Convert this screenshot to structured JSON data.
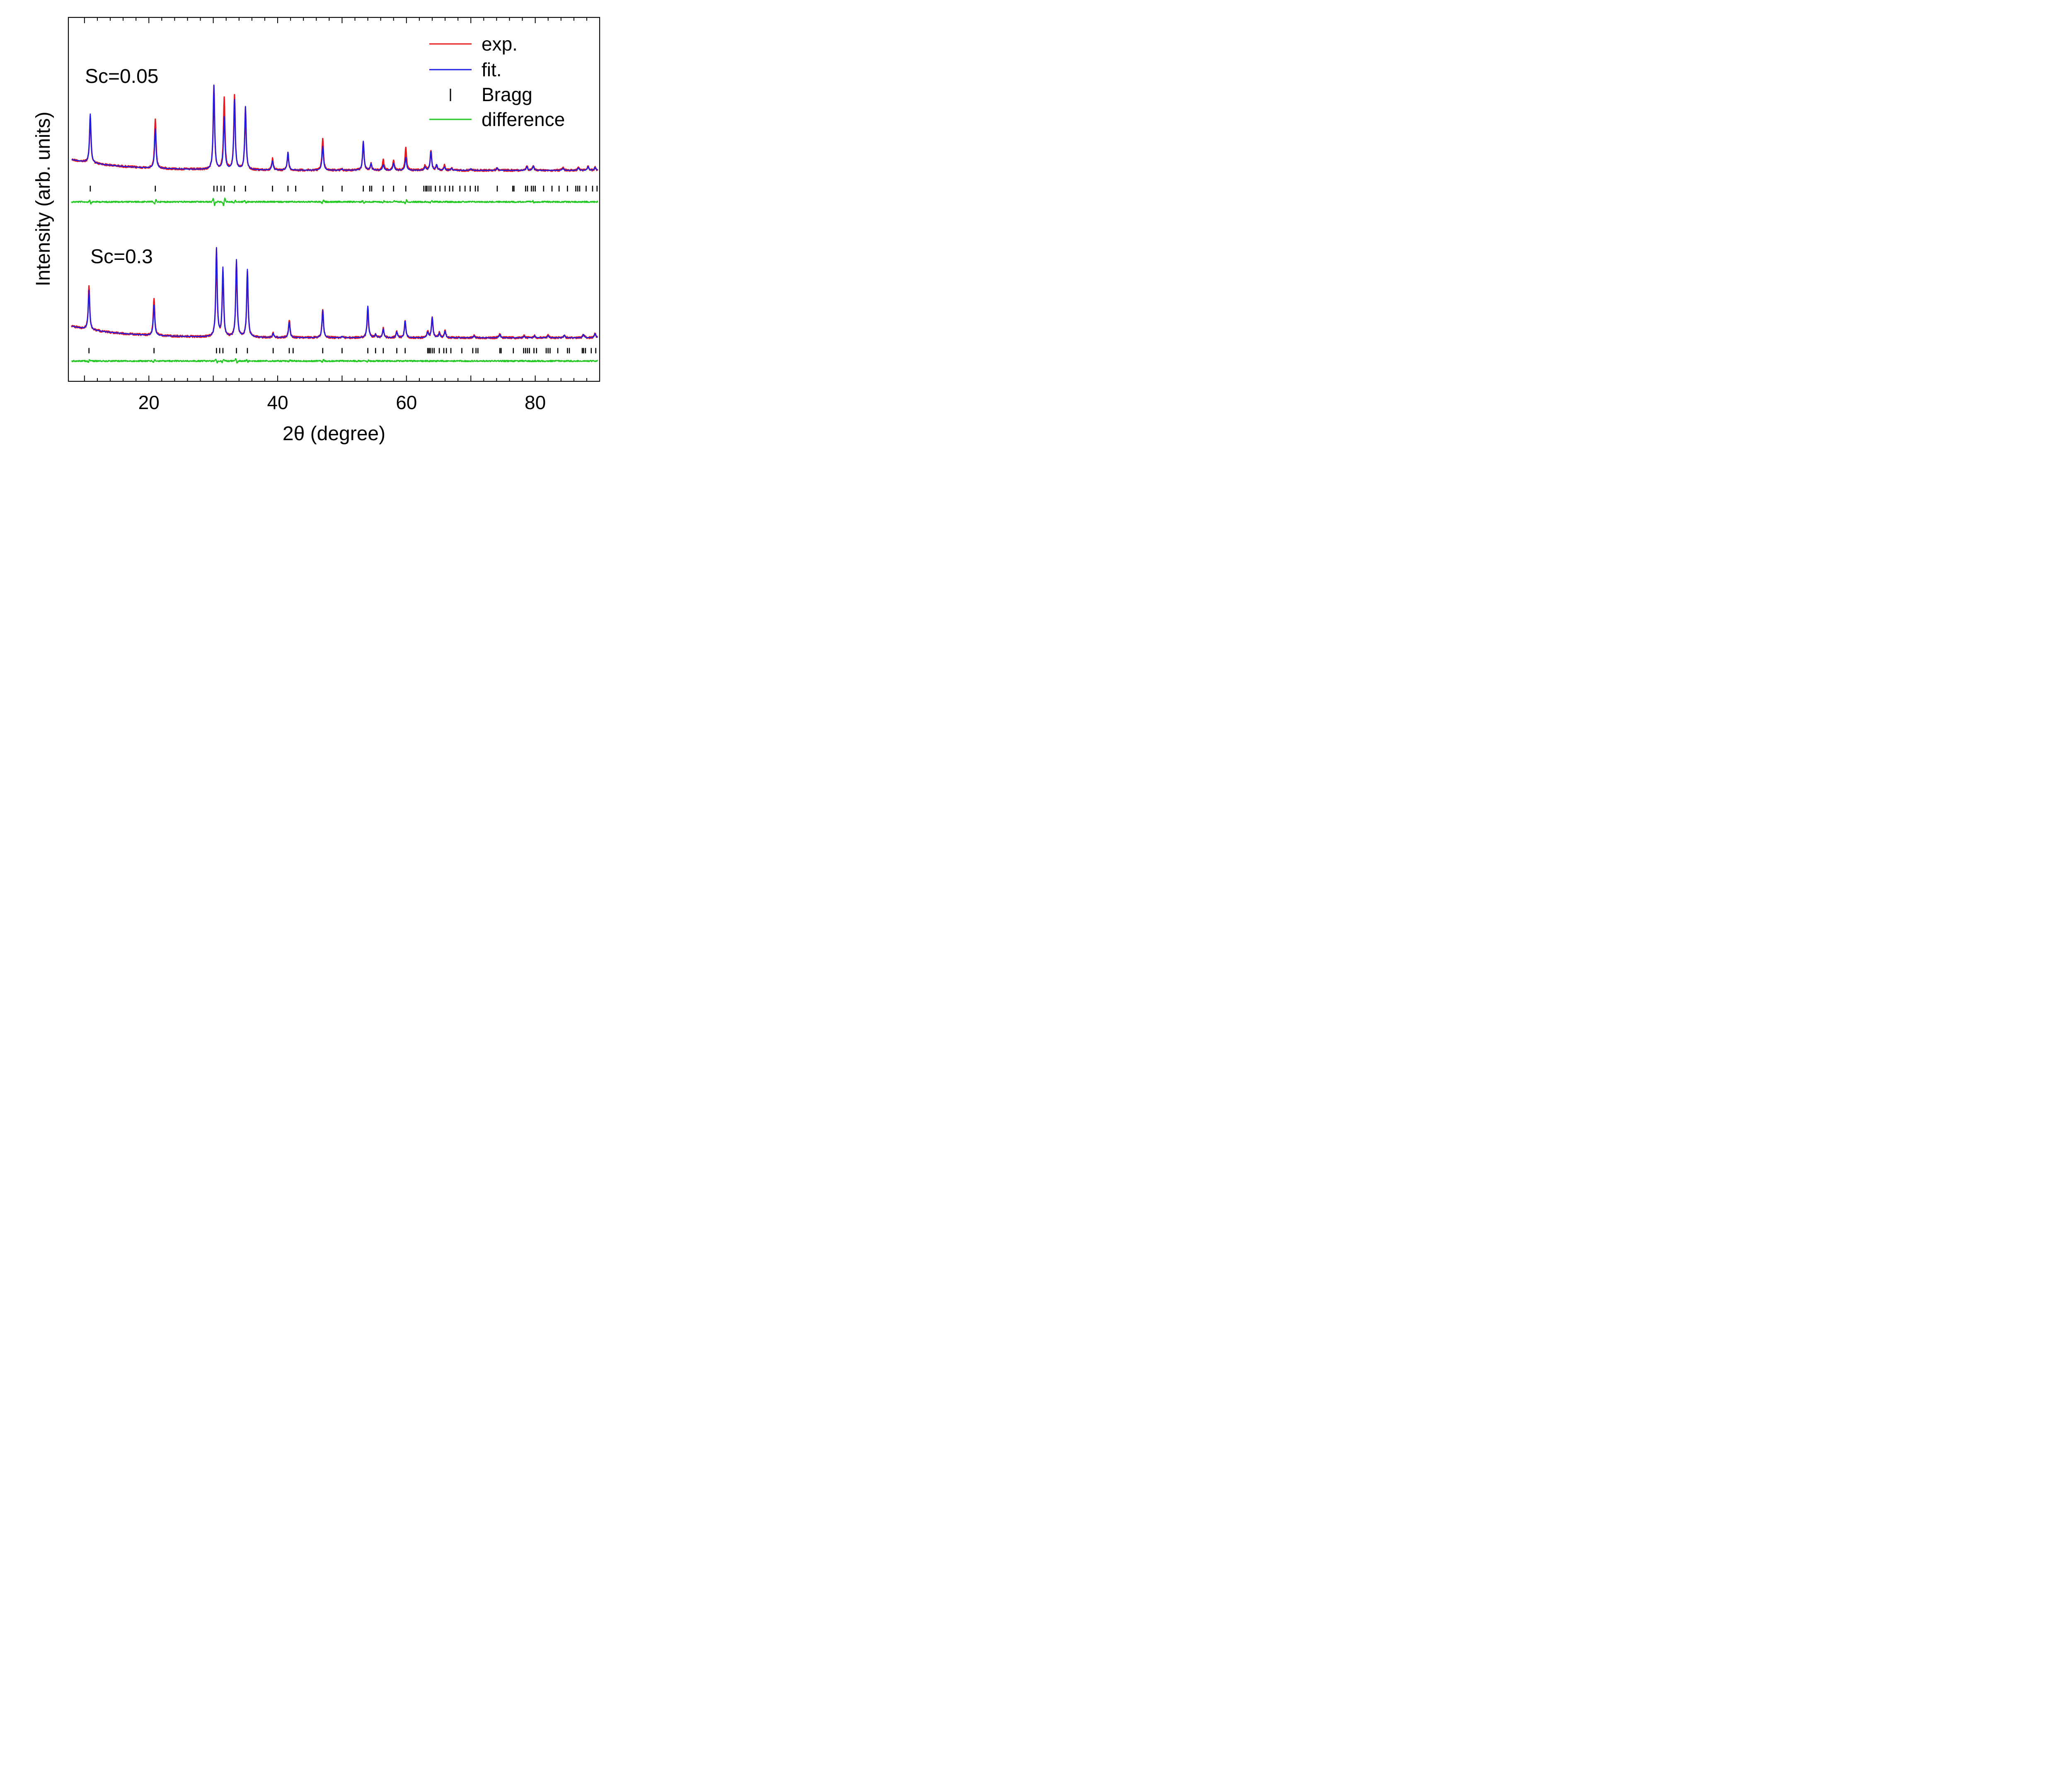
{
  "chart_data": {
    "type": "line",
    "title": "",
    "xlabel": "2θ (degree)",
    "ylabel": "Intensity (arb. units)",
    "xlim": [
      7.5,
      90
    ],
    "x_tick_labels": [
      "20",
      "40",
      "60",
      "80"
    ],
    "x_ticks": [
      20,
      40,
      60,
      80
    ],
    "x_minor_step": 2,
    "y_tick_labels": [],
    "grid": false,
    "legend": {
      "placement": "top-right",
      "entries": [
        {
          "label": "exp.",
          "kind": "line",
          "color": "#e8191e"
        },
        {
          "label": "fit.",
          "kind": "line",
          "color": "#1c1ce6"
        },
        {
          "label": "Bragg",
          "kind": "tick",
          "color": "#000000"
        },
        {
          "label": "difference",
          "kind": "line",
          "color": "#1ec81e"
        }
      ]
    },
    "colors": {
      "exp": "#e8191e",
      "fit": "#1c1ce6",
      "bragg": "#000000",
      "difference": "#1ec81e"
    },
    "panels": [
      {
        "label": "Sc=0.05",
        "peaks": [
          {
            "x": 10.9,
            "fit": 118,
            "exp": 115
          },
          {
            "x": 21.0,
            "fit": 95,
            "exp": 119
          },
          {
            "x": 30.1,
            "fit": 203,
            "exp": 200
          },
          {
            "x": 31.7,
            "fit": 126,
            "exp": 171
          },
          {
            "x": 33.3,
            "fit": 168,
            "exp": 178
          },
          {
            "x": 35.0,
            "fit": 152,
            "exp": 149
          },
          {
            "x": 39.2,
            "fit": 22,
            "exp": 27
          },
          {
            "x": 41.6,
            "fit": 43,
            "exp": 41
          },
          {
            "x": 47.0,
            "fit": 58,
            "exp": 77
          },
          {
            "x": 50.0,
            "fit": 3,
            "exp": 3
          },
          {
            "x": 53.3,
            "fit": 70,
            "exp": 69
          },
          {
            "x": 54.5,
            "fit": 16,
            "exp": 15
          },
          {
            "x": 56.4,
            "fit": 13,
            "exp": 25
          },
          {
            "x": 58.0,
            "fit": 17,
            "exp": 24
          },
          {
            "x": 59.9,
            "fit": 31,
            "exp": 54
          },
          {
            "x": 62.9,
            "fit": 8,
            "exp": 12
          },
          {
            "x": 63.8,
            "fit": 45,
            "exp": 49
          },
          {
            "x": 64.7,
            "fit": 13,
            "exp": 13
          },
          {
            "x": 65.9,
            "fit": 8,
            "exp": 12
          },
          {
            "x": 67.0,
            "fit": 5,
            "exp": 6
          },
          {
            "x": 70.0,
            "fit": 4,
            "exp": 4
          },
          {
            "x": 74.1,
            "fit": 6,
            "exp": 7
          },
          {
            "x": 78.7,
            "fit": 9,
            "exp": 10
          },
          {
            "x": 79.7,
            "fit": 10,
            "exp": 11
          },
          {
            "x": 84.3,
            "fit": 5,
            "exp": 6
          },
          {
            "x": 86.7,
            "fit": 6,
            "exp": 7
          },
          {
            "x": 88.2,
            "fit": 9,
            "exp": 10
          },
          {
            "x": 89.3,
            "fit": 7,
            "exp": 7
          }
        ],
        "bragg_positions": [
          10.9,
          21.0,
          30.1,
          30.6,
          31.2,
          31.7,
          33.3,
          35.0,
          39.2,
          41.6,
          42.8,
          47.0,
          50.0,
          53.3,
          54.3,
          54.6,
          56.4,
          58.0,
          59.9,
          62.7,
          63.0,
          63.2,
          63.5,
          63.8,
          64.5,
          65.2,
          66.0,
          66.7,
          67.2,
          68.3,
          69.1,
          69.9,
          70.7,
          71.1,
          74.1,
          76.5,
          76.7,
          78.5,
          78.8,
          79.4,
          79.7,
          80.0,
          81.3,
          82.6,
          83.7,
          85.0,
          86.3,
          86.6,
          86.9,
          87.9,
          88.9,
          89.6
        ],
        "difference_features": [
          {
            "x": 10.9,
            "amp": -9
          },
          {
            "x": 21.0,
            "amp": 10
          },
          {
            "x": 30.1,
            "amp": -18
          },
          {
            "x": 31.7,
            "amp": 22
          },
          {
            "x": 33.3,
            "amp": 6
          },
          {
            "x": 35.0,
            "amp": -7
          },
          {
            "x": 47.0,
            "amp": 8
          },
          {
            "x": 53.3,
            "amp": -6
          },
          {
            "x": 56.4,
            "amp": 4
          },
          {
            "x": 58.0,
            "amp": 4
          },
          {
            "x": 59.9,
            "amp": 9
          },
          {
            "x": 63.8,
            "amp": 4
          },
          {
            "x": 79.7,
            "amp": -5
          }
        ]
      },
      {
        "label": "Sc=0.3",
        "peaks": [
          {
            "x": 10.7,
            "fit": 95,
            "exp": 104
          },
          {
            "x": 20.8,
            "fit": 73,
            "exp": 90
          },
          {
            "x": 30.5,
            "fit": 213,
            "exp": 209
          },
          {
            "x": 31.5,
            "fit": 165,
            "exp": 162
          },
          {
            "x": 33.6,
            "fit": 186,
            "exp": 183
          },
          {
            "x": 35.3,
            "fit": 163,
            "exp": 160
          },
          {
            "x": 39.3,
            "fit": 10,
            "exp": 10
          },
          {
            "x": 41.8,
            "fit": 37,
            "exp": 43
          },
          {
            "x": 47.0,
            "fit": 66,
            "exp": 69
          },
          {
            "x": 50.0,
            "fit": 3,
            "exp": 3
          },
          {
            "x": 54.0,
            "fit": 76,
            "exp": 74
          },
          {
            "x": 55.2,
            "fit": 8,
            "exp": 8
          },
          {
            "x": 56.4,
            "fit": 21,
            "exp": 23
          },
          {
            "x": 58.5,
            "fit": 14,
            "exp": 14
          },
          {
            "x": 59.8,
            "fit": 40,
            "exp": 42
          },
          {
            "x": 63.3,
            "fit": 13,
            "exp": 15
          },
          {
            "x": 64.0,
            "fit": 49,
            "exp": 49
          },
          {
            "x": 65.1,
            "fit": 11,
            "exp": 12
          },
          {
            "x": 66.0,
            "fit": 16,
            "exp": 18
          },
          {
            "x": 70.5,
            "fit": 5,
            "exp": 6
          },
          {
            "x": 74.5,
            "fit": 8,
            "exp": 9
          },
          {
            "x": 78.3,
            "fit": 4,
            "exp": 5
          },
          {
            "x": 79.9,
            "fit": 5,
            "exp": 5
          },
          {
            "x": 82.0,
            "fit": 5,
            "exp": 6
          },
          {
            "x": 84.5,
            "fit": 6,
            "exp": 7
          },
          {
            "x": 87.5,
            "fit": 8,
            "exp": 9
          },
          {
            "x": 89.3,
            "fit": 10,
            "exp": 11
          }
        ],
        "bragg_positions": [
          10.7,
          20.8,
          30.5,
          31.0,
          31.5,
          33.6,
          35.3,
          39.3,
          41.8,
          42.4,
          47.0,
          50.0,
          54.0,
          55.2,
          56.4,
          58.5,
          59.8,
          63.3,
          63.5,
          63.7,
          64.0,
          64.3,
          65.1,
          65.8,
          66.2,
          66.9,
          68.6,
          70.3,
          70.8,
          71.1,
          74.5,
          74.7,
          76.6,
          78.2,
          78.5,
          78.8,
          79.1,
          79.8,
          80.2,
          81.7,
          82.0,
          82.3,
          83.5,
          85.0,
          85.3,
          87.3,
          87.5,
          87.8,
          88.7,
          89.4
        ],
        "difference_features": [
          {
            "x": 10.7,
            "amp": 8
          },
          {
            "x": 20.8,
            "amp": 6
          },
          {
            "x": 30.5,
            "amp": -8
          },
          {
            "x": 31.5,
            "amp": 10
          },
          {
            "x": 33.6,
            "amp": -14
          },
          {
            "x": 35.3,
            "amp": -5
          },
          {
            "x": 41.8,
            "amp": 4
          },
          {
            "x": 47.0,
            "amp": 7
          },
          {
            "x": 54.0,
            "amp": 4
          },
          {
            "x": 59.8,
            "amp": 4
          }
        ]
      }
    ]
  }
}
